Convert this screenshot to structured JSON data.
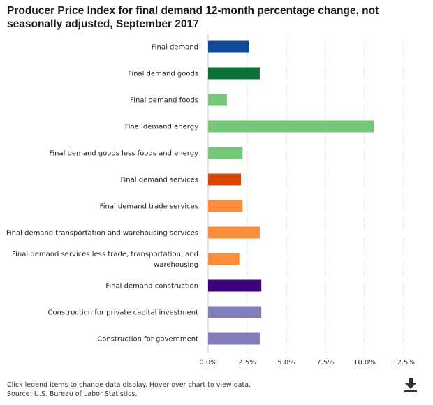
{
  "title": "Producer Price Index for final demand 12-month percentage change, not seasonally adjusted, September 2017",
  "notes": {
    "interaction": "Click legend items to change data display. Hover over chart to view data.",
    "source": "Source: U.S. Bureau of Labor Statistics."
  },
  "icons": {
    "download": "download-icon"
  },
  "chart_data": {
    "type": "bar",
    "orientation": "horizontal",
    "title": "Producer Price Index for final demand 12-month percentage change, not seasonally adjusted, September 2017",
    "xlabel": "",
    "ylabel": "",
    "xlim": [
      0,
      12.5
    ],
    "ticks": [
      0,
      2.5,
      5,
      7.5,
      10,
      12.5
    ],
    "tick_labels": [
      "0.0%",
      "2.5%",
      "5.0%",
      "7.5%",
      "10.0%",
      "12.5%"
    ],
    "grid": "vertical dotted",
    "categories": [
      "Final demand",
      "Final demand goods",
      "Final demand foods",
      "Final demand energy",
      "Final demand goods less foods and energy",
      "Final demand services",
      "Final demand trade services",
      "Final demand transportation and warehousing services",
      "Final demand services less trade, transportation, and warehousing",
      "Final demand construction",
      "Construction for private capital investment",
      "Construction for government"
    ],
    "values": [
      2.6,
      3.3,
      1.2,
      10.6,
      2.2,
      2.1,
      2.2,
      3.3,
      2.0,
      3.4,
      3.4,
      3.3
    ],
    "colors": [
      "#0f4c9c",
      "#0b7237",
      "#78c679",
      "#78c679",
      "#78c679",
      "#d94701",
      "#fd8d3c",
      "#fd8d3c",
      "#fd8d3c",
      "#3f007d",
      "#807dba",
      "#807dba"
    ]
  }
}
